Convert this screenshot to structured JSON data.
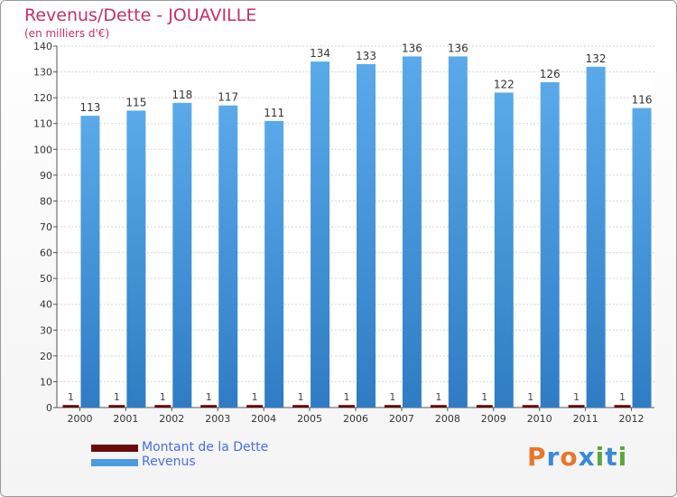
{
  "chart_data": {
    "type": "bar",
    "title": "Revenus/Dette - JOUAVILLE",
    "subtitle": "(en milliers d'€)",
    "categories": [
      "2000",
      "2001",
      "2002",
      "2003",
      "2004",
      "2005",
      "2006",
      "2007",
      "2008",
      "2009",
      "2010",
      "2011",
      "2012"
    ],
    "series": [
      {
        "name": "Montant de la Dette",
        "color": "#6b0a0a",
        "values": [
          1,
          1,
          1,
          1,
          1,
          1,
          1,
          1,
          1,
          1,
          1,
          1,
          1
        ]
      },
      {
        "name": "Revenus",
        "color": "#4a9be0",
        "values": [
          113,
          115,
          118,
          117,
          111,
          134,
          133,
          136,
          136,
          122,
          126,
          132,
          116
        ]
      }
    ],
    "ylim": [
      0,
      140
    ],
    "yticks": [
      0,
      10,
      20,
      30,
      40,
      50,
      60,
      70,
      80,
      90,
      100,
      110,
      120,
      130,
      140
    ],
    "grid": true,
    "legend_position": "bottom-left"
  },
  "logo": {
    "text": "Proxiti",
    "colors": [
      "#e8762b",
      "#3a8ad8",
      "#e8762b",
      "#3a8ad8",
      "#5aa83a",
      "#3a8ad8",
      "#5aa83a"
    ]
  }
}
